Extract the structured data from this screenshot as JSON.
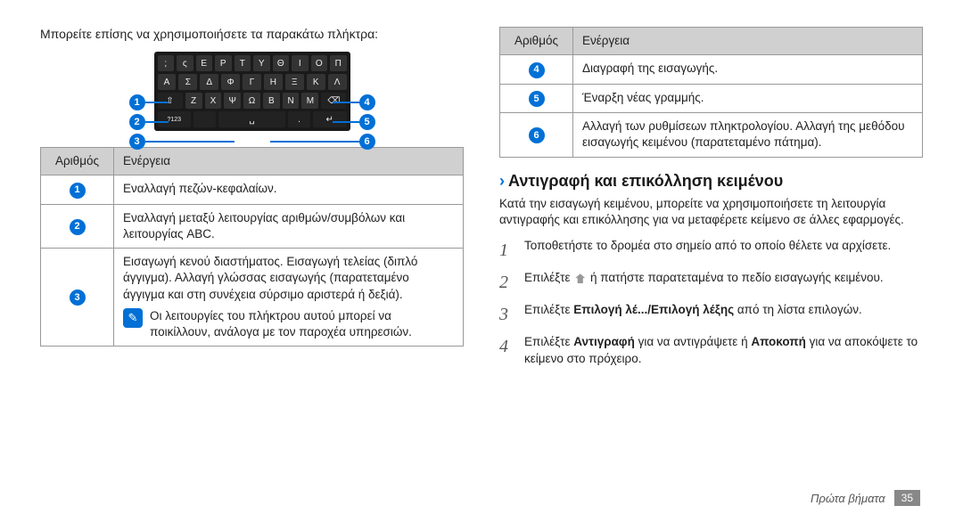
{
  "left": {
    "intro": "Μπορείτε επίσης να χρησιμοποιήσετε τα παρακάτω πλήκτρα:",
    "keyboard": {
      "rows": [
        [
          ";",
          "ς",
          "Ε",
          "Ρ",
          "Τ",
          "Υ",
          "Θ",
          "Ι",
          "Ο",
          "Π"
        ],
        [
          "Α",
          "Σ",
          "Δ",
          "Φ",
          "Γ",
          "Η",
          "Ξ",
          "Κ",
          "Λ"
        ],
        [
          "⇧",
          "Ζ",
          "Χ",
          "Ψ",
          "Ω",
          "Β",
          "Ν",
          "Μ",
          "⌫"
        ],
        [
          "?123",
          "",
          "␣",
          ".",
          "↵"
        ]
      ],
      "callouts": [
        "1",
        "2",
        "3",
        "4",
        "5",
        "6"
      ]
    },
    "table_headers": {
      "num": "Αριθμός",
      "action": "Ενέργεια"
    },
    "rows": [
      {
        "n": "1",
        "text": "Εναλλαγή πεζών-κεφαλαίων."
      },
      {
        "n": "2",
        "text": "Εναλλαγή μεταξύ λειτουργίας αριθμών/συμβόλων και λειτουργίας ABC."
      },
      {
        "n": "3",
        "text": "Εισαγωγή κενού διαστήματος. Εισαγωγή τελείας (διπλό άγγιγμα). Αλλαγή γλώσσας εισαγωγής (παρατεταμένο άγγιγμα και στη συνέχεια σύρσιμο αριστερά ή δεξιά).",
        "note": "Οι λειτουργίες του πλήκτρου αυτού μπορεί να ποικίλλουν, ανάλογα με τον παροχέα υπηρεσιών."
      }
    ]
  },
  "right": {
    "table_headers": {
      "num": "Αριθμός",
      "action": "Ενέργεια"
    },
    "rows": [
      {
        "n": "4",
        "text": "Διαγραφή της εισαγωγής."
      },
      {
        "n": "5",
        "text": "Έναρξη νέας γραμμής."
      },
      {
        "n": "6",
        "text": "Αλλαγή των ρυθμίσεων πληκτρολογίου. Αλλαγή της μεθόδου εισαγωγής κειμένου (παρατεταμένο πάτημα)."
      }
    ],
    "section_title": "Αντιγραφή και επικόλληση κειμένου",
    "section_intro": "Κατά την εισαγωγή κειμένου, μπορείτε να χρησιμοποιήσετε τη λειτουργία αντιγραφής και επικόλλησης για να μεταφέρετε κείμενο σε άλλες εφαρμογές.",
    "steps": [
      {
        "n": "1",
        "html": "Τοποθετήστε το δρομέα στο σημείο από το οποίο θέλετε να αρχίσετε."
      },
      {
        "n": "2",
        "html": "Επιλέξτε <span class=\"inline-icon\" data-name=\"home-icon\" data-interactable=\"false\"></span> ή πατήστε παρατεταμένα το πεδίο εισαγωγής κειμένου."
      },
      {
        "n": "3",
        "html": "Επιλέξτε <b>Επιλογή λέ.../Επιλογή λέξης</b> από τη λίστα επιλογών."
      },
      {
        "n": "4",
        "html": "Επιλέξτε <b>Αντιγραφή</b> για να αντιγράψετε ή <b>Αποκοπή</b> για να αποκόψετε το κείμενο στο πρόχειρο."
      }
    ]
  },
  "footer": {
    "section": "Πρώτα βήματα",
    "page": "35"
  },
  "colors": {
    "accent": "#0070d6",
    "header_bg": "#d0d0d0",
    "border": "#999999",
    "footer_badge": "#888888"
  }
}
